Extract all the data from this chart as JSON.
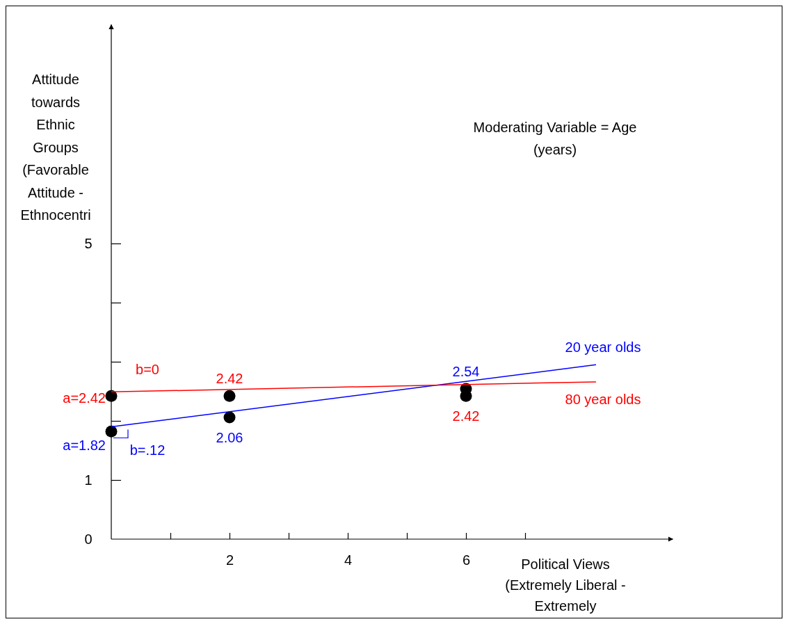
{
  "chart_data": {
    "type": "line",
    "xlabel": "Political Views (Extremely Liberal - Extremely",
    "ylabel": "Attitude towards Ethnic Groups (Favorable Attitude - Ethnocentri",
    "xlim": [
      0,
      9.5
    ],
    "ylim": [
      0,
      8.7
    ],
    "xticks": [
      {
        "value": 1,
        "label": null
      },
      2,
      {
        "value": 3,
        "label": null
      },
      4,
      {
        "value": 5,
        "label": null
      },
      6,
      {
        "value": 7,
        "label": null
      }
    ],
    "yticks": [
      0,
      1,
      {
        "value": 2,
        "label": null
      },
      {
        "value": 3,
        "label": null
      },
      {
        "value": 4,
        "label": null
      },
      5
    ],
    "series": [
      {
        "name": "20 year olds",
        "color": "#0000ff",
        "x": [
          0,
          8.2
        ],
        "values": [
          1.9,
          2.95
        ],
        "marker": "none"
      },
      {
        "name": "80 year olds",
        "color": "#ff0000",
        "x": [
          0,
          8.2
        ],
        "values": [
          2.49,
          2.66
        ],
        "marker": "none"
      },
      {
        "color": "#000000",
        "type": "scatter",
        "x": [
          0,
          2,
          6
        ],
        "values": [
          1.82,
          2.06,
          2.54
        ],
        "value_labels": [
          "a=1.82",
          "2.06",
          "2.54"
        ],
        "marker": "circle"
      },
      {
        "color": "#000000",
        "type": "scatter",
        "x": [
          0,
          2,
          6
        ],
        "values": [
          2.42,
          2.42,
          2.42
        ],
        "value_labels": [
          "a=2.42",
          "2.42",
          "2.42"
        ],
        "marker": "circle"
      }
    ],
    "annotations": [
      "Moderating Variable = Age (years)",
      "b=.12",
      "b=0"
    ],
    "legend": false,
    "grid": false
  }
}
